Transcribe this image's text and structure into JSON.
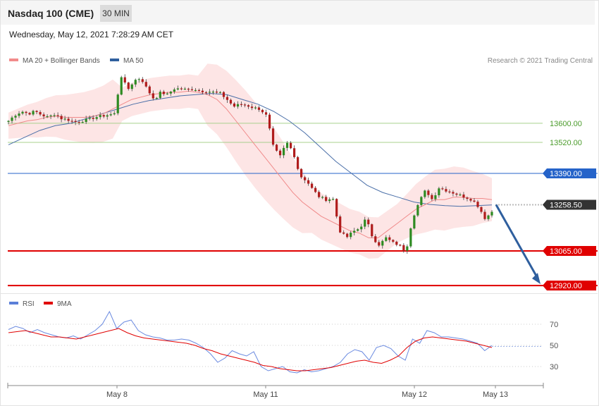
{
  "header": {
    "title": "Nasdaq 100 (CME)",
    "interval": "30 MIN"
  },
  "timestamp": "Wednesday, May 12, 2021 7:28:29 AM CET",
  "copyright": "Research © 2021 Trading Central",
  "legend_main": [
    {
      "label": "MA 20 + Bollinger Bands",
      "color": "#f28b8b"
    },
    {
      "label": "MA 50",
      "color": "#2f5f9e"
    }
  ],
  "legend_rsi": [
    {
      "label": "RSI",
      "color": "#5b7fd8"
    },
    {
      "label": "9MA",
      "color": "#e00000"
    }
  ],
  "colors": {
    "up": "#2e8b22",
    "down": "#b01c1c",
    "band": "#fde0e0",
    "ma20": "#f08a8a",
    "ma50": "#4a6fa8",
    "pivot": "#2563c9",
    "support": "#e00000",
    "current": "#333333",
    "resistance_line": "#a8d08d",
    "resistance_text": "#4a9b2a",
    "arrow": "#2f5f9e"
  },
  "chart_data": [
    {
      "type": "candlestick",
      "title": "Nasdaq 100 (CME)",
      "timeframe": "30 MIN",
      "x_tick_labels": [
        "May 8",
        "May 11",
        "May 12",
        "May 13"
      ],
      "levels": [
        {
          "value": 13600.0,
          "label": "13600.00",
          "role": "resistance"
        },
        {
          "value": 13520.0,
          "label": "13520.00",
          "role": "resistance"
        },
        {
          "value": 13390.0,
          "label": "13390.00",
          "role": "pivot"
        },
        {
          "value": 13258.5,
          "label": "13258.50",
          "role": "current"
        },
        {
          "value": 13065.0,
          "label": "13065.00",
          "role": "support"
        },
        {
          "value": 12920.0,
          "label": "12920.00",
          "role": "support"
        }
      ],
      "y_range": [
        12920,
        13900
      ],
      "close_path": [
        13610,
        13635,
        13650,
        13640,
        13650,
        13635,
        13625,
        13640,
        13620,
        13615,
        13605,
        13610,
        13615,
        13625,
        13630,
        13635,
        13640,
        13800,
        13740,
        13780,
        13790,
        13740,
        13700,
        13730,
        13720,
        13745,
        13745,
        13740,
        13745,
        13735,
        13735,
        13730,
        13725,
        13700,
        13670,
        13680,
        13675,
        13665,
        13660,
        13630,
        13500,
        13460,
        13520,
        13480,
        13380,
        13360,
        13320,
        13290,
        13280,
        13285,
        13150,
        13120,
        13145,
        13160,
        13200,
        13120,
        13090,
        13120,
        13100,
        13090,
        13060,
        13200,
        13270,
        13320,
        13280,
        13330,
        13320,
        13310,
        13300,
        13290,
        13280,
        13250,
        13200,
        13230
      ],
      "ma20_path": [
        13590,
        13600,
        13610,
        13615,
        13625,
        13630,
        13625,
        13625,
        13625,
        13630,
        13640,
        13660,
        13680,
        13700,
        13710,
        13720,
        13725,
        13730,
        13730,
        13735,
        13730,
        13720,
        13700,
        13660,
        13610,
        13560,
        13510,
        13460,
        13410,
        13360,
        13310,
        13270,
        13240,
        13210,
        13190,
        13170,
        13150,
        13140,
        13120,
        13120,
        13150,
        13180,
        13210,
        13240,
        13260,
        13280,
        13280,
        13290,
        13290,
        13285,
        13285,
        13280
      ],
      "ma50_path": [
        13510,
        13540,
        13570,
        13590,
        13600,
        13620,
        13640,
        13660,
        13680,
        13695,
        13705,
        13715,
        13720,
        13725,
        13720,
        13700,
        13680,
        13650,
        13610,
        13560,
        13500,
        13440,
        13390,
        13340,
        13310,
        13290,
        13270,
        13260,
        13255,
        13252,
        13255,
        13258
      ],
      "forecast_target": 12920.0
    },
    {
      "type": "line",
      "title": "RSI",
      "series": [
        {
          "name": "RSI"
        },
        {
          "name": "9MA"
        }
      ],
      "y_tick_labels": [
        "70",
        "50",
        "30"
      ],
      "y_levels": [
        70,
        50,
        30
      ],
      "rsi_path": [
        65,
        68,
        66,
        62,
        65,
        62,
        60,
        58,
        57,
        59,
        56,
        60,
        64,
        70,
        82,
        66,
        72,
        74,
        64,
        60,
        58,
        57,
        55,
        55,
        56,
        55,
        52,
        48,
        42,
        34,
        38,
        45,
        42,
        40,
        44,
        30,
        26,
        28,
        30,
        25,
        24,
        27,
        25,
        26,
        28,
        30,
        34,
        42,
        46,
        44,
        36,
        48,
        50,
        47,
        40,
        36,
        56,
        52,
        64,
        62,
        58,
        58,
        57,
        56,
        54,
        52,
        45,
        50
      ],
      "ma9_path": [
        62,
        63,
        64,
        62,
        60,
        58,
        58,
        57,
        56,
        58,
        60,
        62,
        64,
        66,
        62,
        59,
        57,
        56,
        55,
        54,
        53,
        52,
        50,
        47,
        45,
        42,
        40,
        38,
        36,
        34,
        31,
        30,
        28,
        27,
        26,
        26,
        27,
        28,
        29,
        31,
        33,
        35,
        36,
        34,
        33,
        36,
        40,
        48,
        54,
        57,
        58,
        57,
        56,
        55,
        54,
        52,
        50,
        48
      ]
    }
  ]
}
